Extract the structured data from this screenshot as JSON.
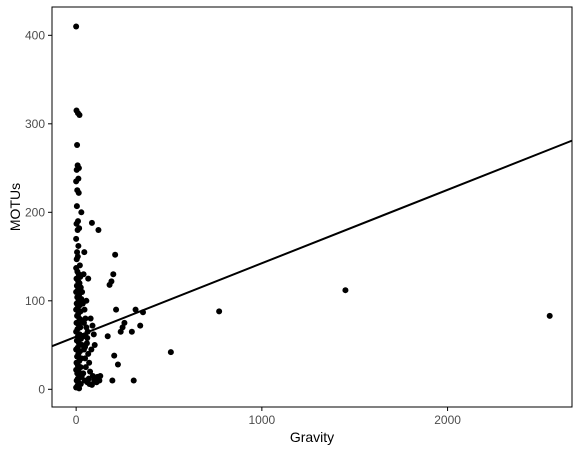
{
  "chart_data": {
    "type": "scatter",
    "title": "",
    "xlabel": "Gravity",
    "ylabel": "MOTUs",
    "xlim": [
      -130,
      2670
    ],
    "ylim": [
      -20,
      432
    ],
    "xticks": [
      0,
      1000,
      2000
    ],
    "yticks": [
      0,
      100,
      200,
      300,
      400
    ],
    "grid": false,
    "legend": "none",
    "colors": {
      "points": "#000000",
      "line": "#000000",
      "axis": "#000000",
      "tick_text": "#4d4d4d"
    },
    "regression_line": {
      "x": [
        -130,
        2670
      ],
      "y": [
        48.7,
        281
      ]
    },
    "series": [
      {
        "points": [
          [
            0,
            410
          ],
          [
            2,
            315
          ],
          [
            10,
            312
          ],
          [
            18,
            310
          ],
          [
            5,
            276
          ],
          [
            8,
            253
          ],
          [
            15,
            250
          ],
          [
            3,
            248
          ],
          [
            12,
            238
          ],
          [
            0,
            235
          ],
          [
            6,
            225
          ],
          [
            14,
            222
          ],
          [
            4,
            207
          ],
          [
            10,
            190
          ],
          [
            2,
            187
          ],
          [
            16,
            182
          ],
          [
            8,
            180
          ],
          [
            0,
            170
          ],
          [
            12,
            162
          ],
          [
            5,
            155
          ],
          [
            9,
            150
          ],
          [
            3,
            147
          ],
          [
            20,
            140
          ],
          [
            0,
            137
          ],
          [
            7,
            133
          ],
          [
            14,
            130
          ],
          [
            22,
            127
          ],
          [
            2,
            125
          ],
          [
            11,
            122
          ],
          [
            18,
            120
          ],
          [
            4,
            117
          ],
          [
            25,
            115
          ],
          [
            9,
            112
          ],
          [
            0,
            110
          ],
          [
            16,
            107
          ],
          [
            6,
            104
          ],
          [
            28,
            102
          ],
          [
            13,
            100
          ],
          [
            3,
            97
          ],
          [
            19,
            95
          ],
          [
            8,
            92
          ],
          [
            0,
            90
          ],
          [
            24,
            88
          ],
          [
            11,
            85
          ],
          [
            5,
            83
          ],
          [
            17,
            80
          ],
          [
            30,
            78
          ],
          [
            2,
            75
          ],
          [
            14,
            73
          ],
          [
            22,
            70
          ],
          [
            7,
            68
          ],
          [
            0,
            65
          ],
          [
            19,
            62
          ],
          [
            10,
            60
          ],
          [
            26,
            57
          ],
          [
            4,
            55
          ],
          [
            15,
            52
          ],
          [
            32,
            50
          ],
          [
            8,
            47
          ],
          [
            0,
            45
          ],
          [
            21,
            43
          ],
          [
            12,
            40
          ],
          [
            5,
            37
          ],
          [
            28,
            35
          ],
          [
            17,
            32
          ],
          [
            2,
            30
          ],
          [
            9,
            27
          ],
          [
            24,
            25
          ],
          [
            0,
            22
          ],
          [
            14,
            20
          ],
          [
            6,
            18
          ],
          [
            30,
            15
          ],
          [
            19,
            13
          ],
          [
            3,
            10
          ],
          [
            11,
            8
          ],
          [
            25,
            6
          ],
          [
            7,
            4
          ],
          [
            0,
            2
          ],
          [
            16,
            1
          ],
          [
            9,
            12
          ],
          [
            40,
            130
          ],
          [
            45,
            90
          ],
          [
            50,
            80
          ],
          [
            55,
            70
          ],
          [
            60,
            58
          ],
          [
            42,
            45
          ],
          [
            48,
            35
          ],
          [
            52,
            25
          ],
          [
            38,
            18
          ],
          [
            46,
            10
          ],
          [
            62,
            65
          ],
          [
            58,
            52
          ],
          [
            65,
            40
          ],
          [
            70,
            30
          ],
          [
            75,
            20
          ],
          [
            68,
            12
          ],
          [
            60,
            8
          ],
          [
            72,
            6
          ],
          [
            85,
            188
          ],
          [
            120,
            180
          ],
          [
            78,
            80
          ],
          [
            88,
            72
          ],
          [
            95,
            62
          ],
          [
            100,
            50
          ],
          [
            82,
            45
          ],
          [
            90,
            15
          ],
          [
            98,
            10
          ],
          [
            105,
            12
          ],
          [
            110,
            8
          ],
          [
            115,
            14
          ],
          [
            125,
            10
          ],
          [
            85,
            5
          ],
          [
            130,
            15
          ],
          [
            170,
            60
          ],
          [
            180,
            118
          ],
          [
            190,
            122
          ],
          [
            200,
            130
          ],
          [
            210,
            152
          ],
          [
            215,
            90
          ],
          [
            205,
            38
          ],
          [
            225,
            28
          ],
          [
            240,
            65
          ],
          [
            250,
            70
          ],
          [
            260,
            75
          ],
          [
            195,
            10
          ],
          [
            300,
            65
          ],
          [
            310,
            10
          ],
          [
            320,
            90
          ],
          [
            345,
            72
          ],
          [
            360,
            87
          ],
          [
            510,
            42
          ],
          [
            770,
            88
          ],
          [
            1450,
            112
          ],
          [
            2550,
            83
          ],
          [
            35,
            60
          ],
          [
            55,
            100
          ],
          [
            65,
            125
          ],
          [
            32,
            110
          ],
          [
            44,
            155
          ],
          [
            28,
            200
          ],
          [
            36,
            97
          ],
          [
            42,
            75
          ],
          [
            50,
            60
          ],
          [
            48,
            48
          ]
        ]
      }
    ]
  }
}
